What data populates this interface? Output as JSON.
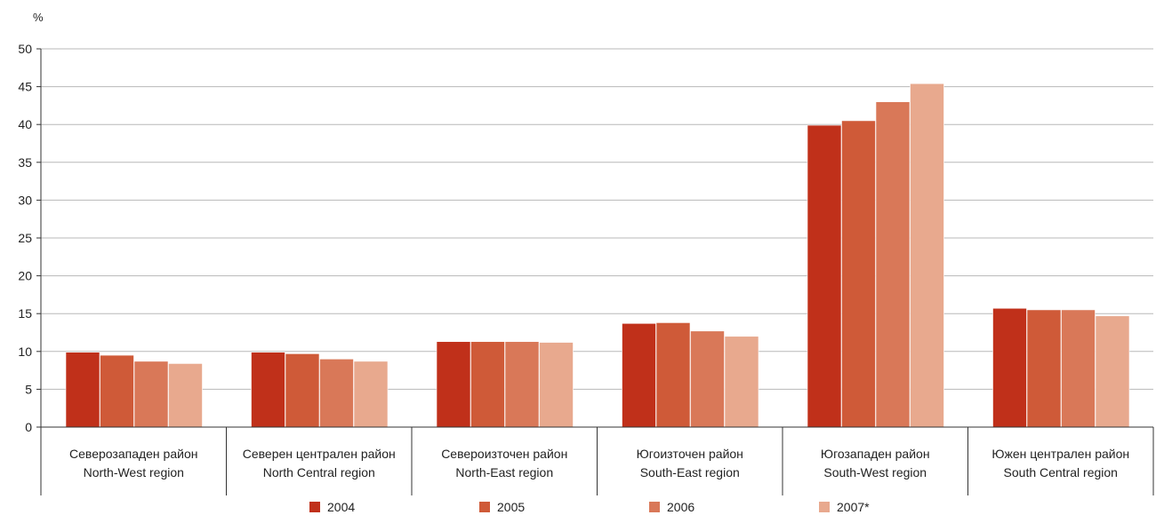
{
  "chart_data": {
    "type": "bar",
    "title": "",
    "unit_label": "%",
    "xlabel": "",
    "ylabel": "",
    "ylim": [
      0,
      50
    ],
    "yticks": [
      0,
      5,
      10,
      15,
      20,
      25,
      30,
      35,
      40,
      45,
      50
    ],
    "grid": true,
    "legend_position": "bottom",
    "categories": [
      [
        "Северозападен район",
        "North-West region"
      ],
      [
        "Северен централен район",
        "North Central region"
      ],
      [
        "Североизточен район",
        "North-East region"
      ],
      [
        "Югоизточен район",
        "South-East region"
      ],
      [
        "Югозападен район",
        "South-West region"
      ],
      [
        "Южен централен район",
        "South Central region"
      ]
    ],
    "series": [
      {
        "name": "2004",
        "color": "#c0301a",
        "values": [
          9.9,
          9.9,
          11.3,
          13.7,
          39.9,
          15.7
        ]
      },
      {
        "name": "2005",
        "color": "#cf5a38",
        "values": [
          9.5,
          9.7,
          11.3,
          13.8,
          40.5,
          15.5
        ]
      },
      {
        "name": "2006",
        "color": "#d97858",
        "values": [
          8.7,
          9.0,
          11.3,
          12.7,
          43.0,
          15.5
        ]
      },
      {
        "name": "2007*",
        "color": "#e8a98e",
        "values": [
          8.4,
          8.7,
          11.2,
          12.0,
          45.4,
          14.7
        ]
      }
    ]
  }
}
